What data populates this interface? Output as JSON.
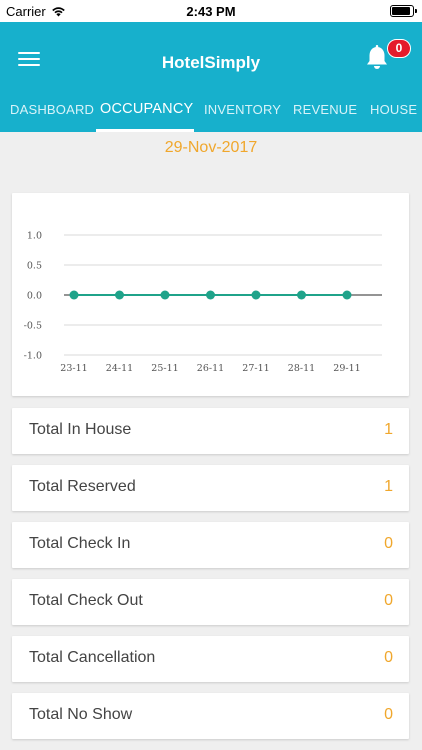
{
  "status_bar": {
    "carrier": "Carrier",
    "time": "2:43 PM",
    "battery_level": 0.9
  },
  "header": {
    "title": "HotelSimply",
    "notification_count": "0"
  },
  "tabs": [
    {
      "label": "DASHBOARD",
      "active": false
    },
    {
      "label": "OCCUPANCY",
      "active": true
    },
    {
      "label": "INVENTORY",
      "active": false
    },
    {
      "label": "REVENUE",
      "active": false
    },
    {
      "label": "HOUSE K",
      "active": false
    }
  ],
  "selected_date": "29-Nov-2017",
  "chart_data": {
    "type": "line",
    "categories": [
      "23-11",
      "24-11",
      "25-11",
      "26-11",
      "27-11",
      "28-11",
      "29-11"
    ],
    "series": [
      {
        "values": [
          0,
          0,
          0,
          0,
          0,
          0,
          0
        ],
        "color": "#1fa38a"
      }
    ],
    "y_ticks": [
      "1.0",
      "0.5",
      "0.0",
      "-0.5",
      "-1.0"
    ],
    "ylim": [
      -1.0,
      1.0
    ],
    "grid": true,
    "title": "",
    "xlabel": "",
    "ylabel": ""
  },
  "stats": [
    {
      "label": "Total In House",
      "value": "1"
    },
    {
      "label": "Total Reserved",
      "value": "1"
    },
    {
      "label": "Total Check In",
      "value": "0"
    },
    {
      "label": "Total Check Out",
      "value": "0"
    },
    {
      "label": "Total Cancellation",
      "value": "0"
    },
    {
      "label": "Total No Show",
      "value": "0"
    }
  ],
  "colors": {
    "primary": "#17b0cc",
    "accent": "#f0a72c",
    "badge": "#e41b2c",
    "series": "#1fa38a"
  },
  "icons": {
    "menu": "hamburger-menu-icon",
    "notifications": "bell-icon",
    "wifi": "wifi-icon"
  }
}
